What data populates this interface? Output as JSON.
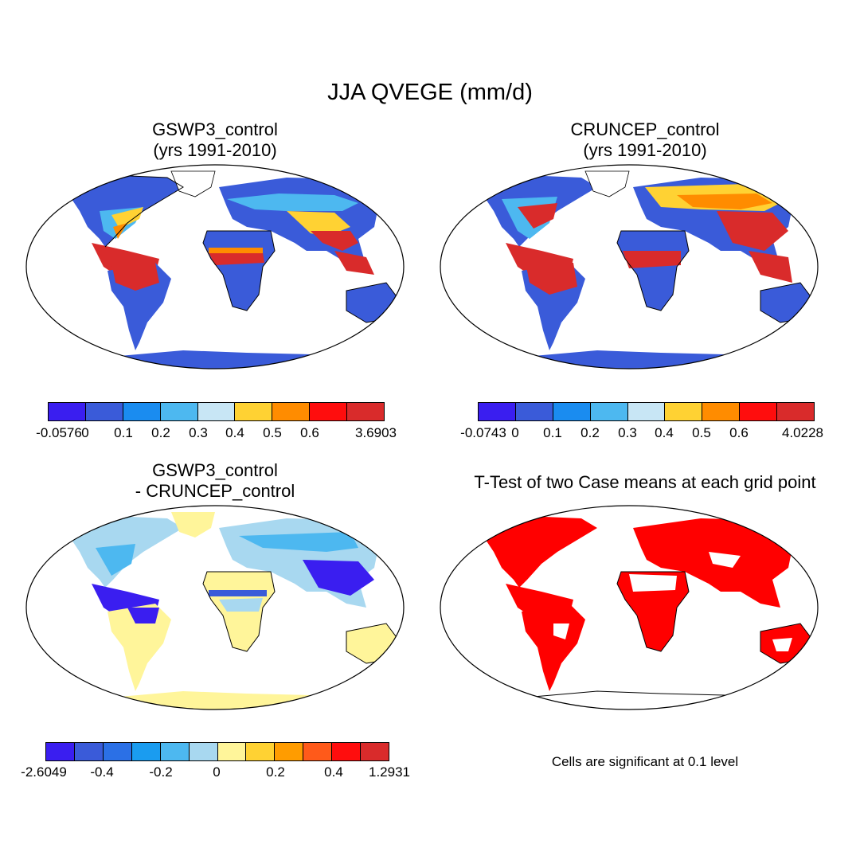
{
  "title": "JJA QVEGE (mm/d)",
  "panels": {
    "top_left": {
      "title_line1": "GSWP3_control",
      "title_line2": "(yrs 1991-2010)"
    },
    "top_right": {
      "title_line1": "CRUNCEP_control",
      "title_line2": "(yrs 1991-2010)"
    },
    "bottom_left": {
      "title_line1": "GSWP3_control",
      "title_line2": "- CRUNCEP_control"
    },
    "bottom_right": {
      "title_line1": "T-Test of two Case means at each grid point",
      "note": "Cells are significant at 0.1 level"
    }
  },
  "colorbars": {
    "cb1": {
      "colors": [
        "#3a1ef0",
        "#3a5bd9",
        "#1a8cf0",
        "#4db8f0",
        "#c8e6f5",
        "#ffd233",
        "#ff8c00",
        "#ff0d0d",
        "#d92b2b"
      ],
      "labels": [
        "-0.0576",
        "0",
        "0.1",
        "0.2",
        "0.3",
        "0.4",
        "0.5",
        "0.6",
        "3.6903"
      ]
    },
    "cb2": {
      "colors": [
        "#3a1ef0",
        "#3a5bd9",
        "#1a8cf0",
        "#4db8f0",
        "#c8e6f5",
        "#ffd233",
        "#ff8c00",
        "#ff0d0d",
        "#d92b2b"
      ],
      "labels": [
        "-0.0743",
        "0",
        "0.1",
        "0.2",
        "0.3",
        "0.4",
        "0.5",
        "0.6",
        "4.0228"
      ]
    },
    "cb3": {
      "colors": [
        "#3a1ef0",
        "#3a5bd9",
        "#2b70e6",
        "#1a9cf0",
        "#4db8f0",
        "#a8d8f0",
        "#fff59a",
        "#ffd233",
        "#ff9c00",
        "#ff5a1a",
        "#ff0d0d",
        "#d92b2b"
      ],
      "labels": [
        "-2.6049",
        "-0.4",
        "-0.2",
        "0",
        "0.2",
        "0.4",
        "1.2931"
      ]
    }
  },
  "map_colors": {
    "veg_blue": "#3a5bd9",
    "light_blue": "#a8d8f0",
    "mid_blue": "#4db8f0",
    "yellow": "#ffd233",
    "orange": "#ff8c00",
    "red": "#ff0d0d",
    "dark_red": "#d92b2b",
    "pale_yellow": "#fff59a",
    "indigo": "#3a1ef0",
    "sig_red": "#ff0000"
  }
}
